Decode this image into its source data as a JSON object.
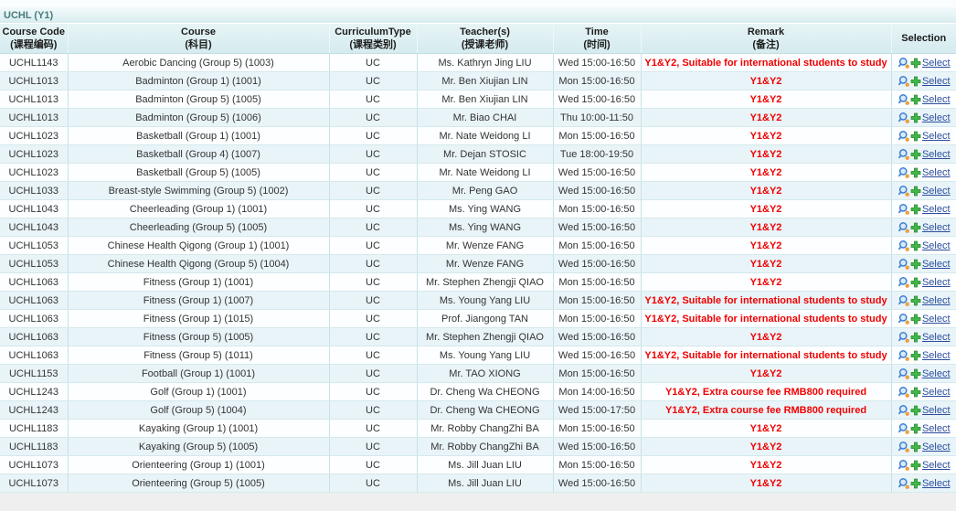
{
  "section": {
    "title": "UCHL (Y1)"
  },
  "colors": {
    "remark_text": "#f10000",
    "select_link": "#2a4d9b",
    "title_text": "#497a7f",
    "header_bg": "#d9edf0",
    "row_alt_bg": "#e9f4f9",
    "magnifier_icon_blue": "#3b7fd4",
    "add_icon_green": "#43b649"
  },
  "table": {
    "select_label": "Select",
    "columns": [
      {
        "key": "course-code",
        "en": "Course Code",
        "zh": "(课程编码)"
      },
      {
        "key": "course",
        "en": "Course",
        "zh": "(科目)"
      },
      {
        "key": "curriculum-type",
        "en": "CurriculumType",
        "zh": "(课程类别)"
      },
      {
        "key": "teachers",
        "en": "Teacher(s)",
        "zh": "(授课老师)"
      },
      {
        "key": "time",
        "en": "Time",
        "zh": "(时间)"
      },
      {
        "key": "remark",
        "en": "Remark",
        "zh": "(备注)"
      },
      {
        "key": "selection",
        "en": "Selection",
        "zh": ""
      }
    ],
    "rows": [
      {
        "code": "UCHL1143",
        "course": "Aerobic Dancing (Group 5) (1003)",
        "type": "UC",
        "teacher": "Ms. Kathryn Jing LIU",
        "time": "Wed 15:00-16:50",
        "remark": "Y1&Y2, Suitable for international students to study"
      },
      {
        "code": "UCHL1013",
        "course": "Badminton (Group 1) (1001)",
        "type": "UC",
        "teacher": "Mr. Ben Xiujian LIN",
        "time": "Mon 15:00-16:50",
        "remark": "Y1&Y2"
      },
      {
        "code": "UCHL1013",
        "course": "Badminton (Group 5) (1005)",
        "type": "UC",
        "teacher": "Mr. Ben Xiujian LIN",
        "time": "Wed 15:00-16:50",
        "remark": "Y1&Y2"
      },
      {
        "code": "UCHL1013",
        "course": "Badminton (Group 5) (1006)",
        "type": "UC",
        "teacher": "Mr. Biao CHAI",
        "time": "Thu 10:00-11:50",
        "remark": "Y1&Y2"
      },
      {
        "code": "UCHL1023",
        "course": "Basketball (Group 1) (1001)",
        "type": "UC",
        "teacher": "Mr. Nate Weidong LI",
        "time": "Mon 15:00-16:50",
        "remark": "Y1&Y2"
      },
      {
        "code": "UCHL1023",
        "course": "Basketball (Group 4) (1007)",
        "type": "UC",
        "teacher": "Mr. Dejan STOSIC",
        "time": "Tue 18:00-19:50",
        "remark": "Y1&Y2"
      },
      {
        "code": "UCHL1023",
        "course": "Basketball (Group 5) (1005)",
        "type": "UC",
        "teacher": "Mr. Nate Weidong LI",
        "time": "Wed 15:00-16:50",
        "remark": "Y1&Y2"
      },
      {
        "code": "UCHL1033",
        "course": "Breast-style Swimming (Group 5) (1002)",
        "type": "UC",
        "teacher": "Mr. Peng GAO",
        "time": "Wed 15:00-16:50",
        "remark": "Y1&Y2"
      },
      {
        "code": "UCHL1043",
        "course": "Cheerleading (Group 1) (1001)",
        "type": "UC",
        "teacher": "Ms. Ying WANG",
        "time": "Mon 15:00-16:50",
        "remark": "Y1&Y2"
      },
      {
        "code": "UCHL1043",
        "course": "Cheerleading (Group 5) (1005)",
        "type": "UC",
        "teacher": "Ms. Ying WANG",
        "time": "Wed 15:00-16:50",
        "remark": "Y1&Y2"
      },
      {
        "code": "UCHL1053",
        "course": "Chinese Health Qigong (Group 1) (1001)",
        "type": "UC",
        "teacher": "Mr. Wenze FANG",
        "time": "Mon 15:00-16:50",
        "remark": "Y1&Y2"
      },
      {
        "code": "UCHL1053",
        "course": "Chinese Health Qigong (Group 5) (1004)",
        "type": "UC",
        "teacher": "Mr. Wenze FANG",
        "time": "Wed 15:00-16:50",
        "remark": "Y1&Y2"
      },
      {
        "code": "UCHL1063",
        "course": "Fitness (Group 1) (1001)",
        "type": "UC",
        "teacher": "Mr. Stephen Zhengji QIAO",
        "time": "Mon 15:00-16:50",
        "remark": "Y1&Y2"
      },
      {
        "code": "UCHL1063",
        "course": "Fitness (Group 1) (1007)",
        "type": "UC",
        "teacher": "Ms. Young Yang LIU",
        "time": "Mon 15:00-16:50",
        "remark": "Y1&Y2, Suitable for international students to study"
      },
      {
        "code": "UCHL1063",
        "course": "Fitness (Group 1) (1015)",
        "type": "UC",
        "teacher": "Prof. Jiangong TAN",
        "time": "Mon 15:00-16:50",
        "remark": "Y1&Y2, Suitable for international students to study"
      },
      {
        "code": "UCHL1063",
        "course": "Fitness (Group 5) (1005)",
        "type": "UC",
        "teacher": "Mr. Stephen Zhengji QIAO",
        "time": "Wed 15:00-16:50",
        "remark": "Y1&Y2"
      },
      {
        "code": "UCHL1063",
        "course": "Fitness (Group 5) (1011)",
        "type": "UC",
        "teacher": "Ms. Young Yang LIU",
        "time": "Wed 15:00-16:50",
        "remark": "Y1&Y2, Suitable for international students to study"
      },
      {
        "code": "UCHL1153",
        "course": "Football (Group 1) (1001)",
        "type": "UC",
        "teacher": "Mr. TAO XIONG",
        "time": "Mon 15:00-16:50",
        "remark": "Y1&Y2"
      },
      {
        "code": "UCHL1243",
        "course": "Golf (Group 1) (1001)",
        "type": "UC",
        "teacher": "Dr. Cheng Wa CHEONG",
        "time": "Mon 14:00-16:50",
        "remark": "Y1&Y2, Extra course fee RMB800 required"
      },
      {
        "code": "UCHL1243",
        "course": "Golf (Group 5) (1004)",
        "type": "UC",
        "teacher": "Dr. Cheng Wa CHEONG",
        "time": "Wed 15:00-17:50",
        "remark": "Y1&Y2, Extra course fee RMB800 required"
      },
      {
        "code": "UCHL1183",
        "course": "Kayaking (Group 1) (1001)",
        "type": "UC",
        "teacher": "Mr. Robby ChangZhi BA",
        "time": "Mon 15:00-16:50",
        "remark": "Y1&Y2"
      },
      {
        "code": "UCHL1183",
        "course": "Kayaking (Group 5) (1005)",
        "type": "UC",
        "teacher": "Mr. Robby ChangZhi BA",
        "time": "Wed 15:00-16:50",
        "remark": "Y1&Y2"
      },
      {
        "code": "UCHL1073",
        "course": "Orienteering (Group 1) (1001)",
        "type": "UC",
        "teacher": "Ms. Jill Juan LIU",
        "time": "Mon 15:00-16:50",
        "remark": "Y1&Y2"
      },
      {
        "code": "UCHL1073",
        "course": "Orienteering (Group 5) (1005)",
        "type": "UC",
        "teacher": "Ms. Jill Juan LIU",
        "time": "Wed 15:00-16:50",
        "remark": "Y1&Y2"
      }
    ]
  }
}
